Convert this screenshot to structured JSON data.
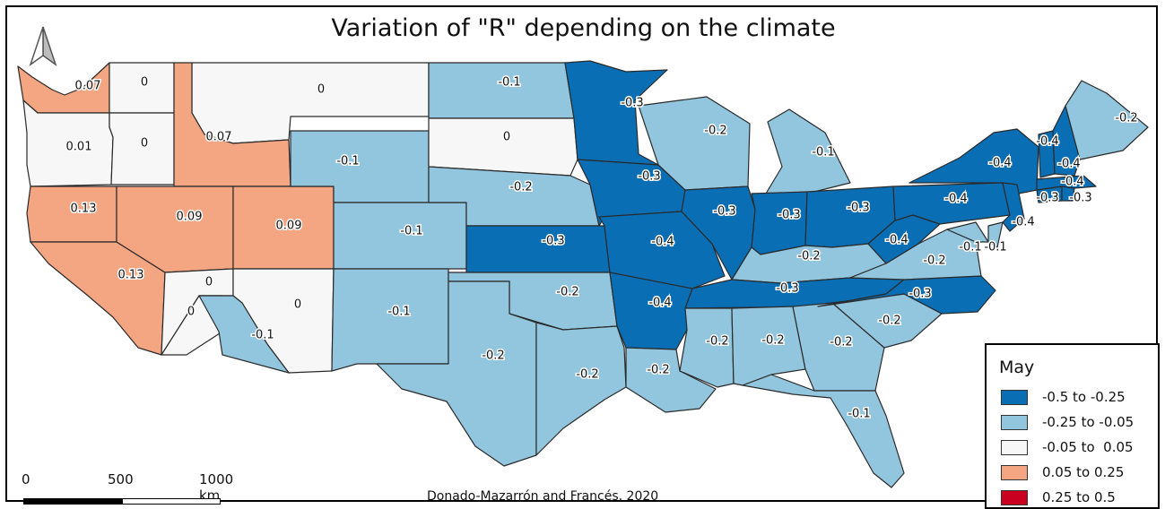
{
  "title": "Variation of \"R\" depending on the climate",
  "credit": "Donado-Mazarrón and Francés, 2020",
  "scale": {
    "ticks": [
      "0",
      "500",
      "1000 km"
    ]
  },
  "legend": {
    "title": "May",
    "classes": [
      {
        "label": "-0.5 to -0.25",
        "color": "#0a6eb4"
      },
      {
        "label": "-0.25 to -0.05",
        "color": "#92c5de"
      },
      {
        "label": "-0.05 to  0.05",
        "color": "#f7f7f7"
      },
      {
        "label": "0.05 to 0.25",
        "color": "#f4a582"
      },
      {
        "label": "0.25 to 0.5",
        "color": "#ca0020"
      }
    ]
  },
  "states": [
    {
      "name": "Washington",
      "value": "0.07",
      "class": 3
    },
    {
      "name": "Oregon",
      "value": "0.01",
      "class": 2
    },
    {
      "name": "California",
      "value": "0.13",
      "class": 3
    },
    {
      "name": "California-South",
      "value": "0.13",
      "class": 3
    },
    {
      "name": "Idaho-North",
      "value": "0",
      "class": 2
    },
    {
      "name": "Idaho-West",
      "value": "0",
      "class": 2
    },
    {
      "name": "Montana",
      "value": "0",
      "class": 2
    },
    {
      "name": "Idaho-East",
      "value": "0.07",
      "class": 3
    },
    {
      "name": "Nevada",
      "value": "0.09",
      "class": 3
    },
    {
      "name": "Utah",
      "value": "0.09",
      "class": 3
    },
    {
      "name": "Nevada-South",
      "value": "0",
      "class": 2
    },
    {
      "name": "Arizona-NW",
      "value": "0",
      "class": 2
    },
    {
      "name": "Arizona",
      "value": "0",
      "class": 2
    },
    {
      "name": "Arizona-SW",
      "value": "-0.1",
      "class": 1
    },
    {
      "name": "Wyoming",
      "value": "-0.1",
      "class": 1
    },
    {
      "name": "Colorado",
      "value": "-0.1",
      "class": 1
    },
    {
      "name": "New Mexico",
      "value": "-0.1",
      "class": 1
    },
    {
      "name": "North Dakota",
      "value": "-0.1",
      "class": 1
    },
    {
      "name": "South Dakota",
      "value": "0",
      "class": 2
    },
    {
      "name": "Nebraska",
      "value": "-0.2",
      "class": 1
    },
    {
      "name": "Kansas",
      "value": "-0.3",
      "class": 0
    },
    {
      "name": "Oklahoma",
      "value": "-0.2",
      "class": 1
    },
    {
      "name": "Texas",
      "value": "-0.2",
      "class": 1
    },
    {
      "name": "Texas-East",
      "value": "-0.2",
      "class": 1
    },
    {
      "name": "Minnesota",
      "value": "-0.3",
      "class": 0
    },
    {
      "name": "Iowa",
      "value": "-0.3",
      "class": 0
    },
    {
      "name": "Missouri",
      "value": "-0.4",
      "class": 0
    },
    {
      "name": "Arkansas",
      "value": "-0.4",
      "class": 0
    },
    {
      "name": "Louisiana",
      "value": "-0.2",
      "class": 1
    },
    {
      "name": "Wisconsin",
      "value": "-0.2",
      "class": 1
    },
    {
      "name": "Illinois",
      "value": "-0.3",
      "class": 0
    },
    {
      "name": "Michigan",
      "value": "-0.1",
      "class": 1
    },
    {
      "name": "Indiana",
      "value": "-0.3",
      "class": 0
    },
    {
      "name": "Ohio",
      "value": "-0.3",
      "class": 0
    },
    {
      "name": "Kentucky",
      "value": "-0.2",
      "class": 1
    },
    {
      "name": "Tennessee",
      "value": "-0.3",
      "class": 0
    },
    {
      "name": "Mississippi",
      "value": "-0.2",
      "class": 1
    },
    {
      "name": "Alabama",
      "value": "-0.2",
      "class": 1
    },
    {
      "name": "Georgia",
      "value": "-0.2",
      "class": 1
    },
    {
      "name": "Florida",
      "value": "-0.1",
      "class": 1
    },
    {
      "name": "South Carolina",
      "value": "-0.2",
      "class": 1
    },
    {
      "name": "North Carolina",
      "value": "-0.3",
      "class": 0
    },
    {
      "name": "Virginia",
      "value": "-0.2",
      "class": 1
    },
    {
      "name": "West Virginia",
      "value": "-0.4",
      "class": 0
    },
    {
      "name": "Pennsylvania",
      "value": "-0.4",
      "class": 0
    },
    {
      "name": "New York",
      "value": "-0.4",
      "class": 0
    },
    {
      "name": "Maryland",
      "value": "-0.1",
      "class": 1
    },
    {
      "name": "Delaware",
      "value": "-0.1",
      "class": 1
    },
    {
      "name": "New Jersey",
      "value": "-0.4",
      "class": 0
    },
    {
      "name": "Connecticut",
      "value": "-0.3",
      "class": 0
    },
    {
      "name": "Rhode Island",
      "value": "-0.3",
      "class": 0
    },
    {
      "name": "Massachusetts",
      "value": "-0.4",
      "class": 0
    },
    {
      "name": "Vermont",
      "value": "-0.4",
      "class": 0
    },
    {
      "name": "New Hampshire",
      "value": "-0.4",
      "class": 0
    },
    {
      "name": "Maine",
      "value": "-0.2",
      "class": 1
    }
  ]
}
